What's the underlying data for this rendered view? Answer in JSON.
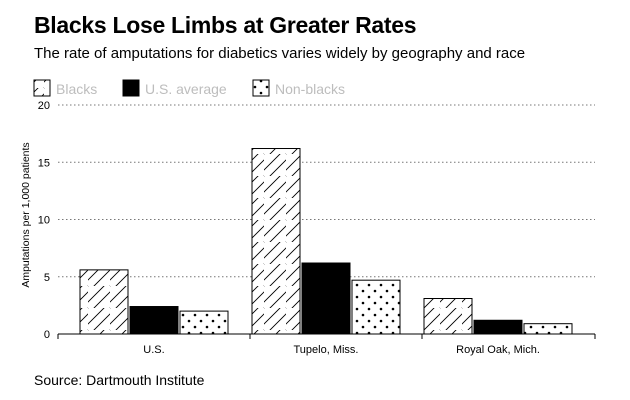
{
  "header": {
    "title": "Blacks Lose Limbs at Greater Rates",
    "subtitle": "The rate of amputations for diabetics varies widely by geography and race"
  },
  "footer": {
    "source": "Source: Dartmouth Institute"
  },
  "chart_data": {
    "type": "bar",
    "title": "Blacks Lose Limbs at Greater Rates",
    "subtitle": "The rate of amputations for diabetics varies widely by geography and race",
    "categories": [
      "U.S.",
      "Tupelo, Miss.",
      "Royal Oak, Mich."
    ],
    "series": [
      {
        "name": "Blacks",
        "values": [
          5.6,
          16.2,
          3.1
        ],
        "pattern": "diagonal-hatch"
      },
      {
        "name": "U.S. average",
        "values": [
          2.4,
          6.2,
          1.2
        ],
        "pattern": "solid-black"
      },
      {
        "name": "Non-blacks",
        "values": [
          2.0,
          4.7,
          0.9
        ],
        "pattern": "dots"
      }
    ],
    "xlabel": "",
    "ylabel": "Amputations per 1,000 patients",
    "ylim": [
      0,
      20
    ],
    "yticks": [
      0,
      5,
      10,
      15,
      20
    ],
    "grid": true,
    "legend_position": "top-left",
    "colors": {
      "bar_fill": "#000000",
      "bar_stroke": "#000000",
      "legend_text": "#bdbdbd",
      "grid": "#777777"
    }
  }
}
